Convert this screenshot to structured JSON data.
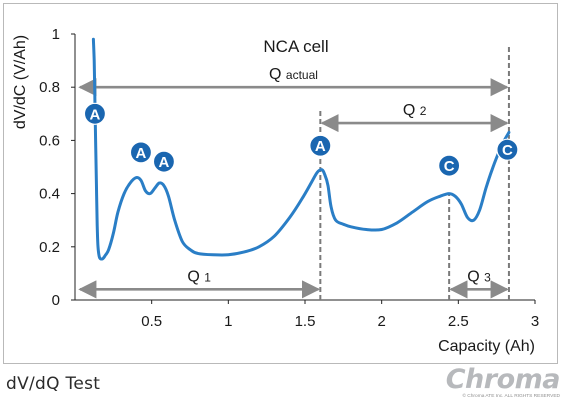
{
  "chart_data": {
    "type": "line",
    "title": "NCA cell",
    "xlabel": "Capacity (Ah)",
    "ylabel": "dV/dC (V/Ah)",
    "xlim": [
      0,
      3
    ],
    "ylim": [
      0,
      1
    ],
    "xticks": [
      0.5,
      1,
      1.5,
      2,
      2.5,
      3
    ],
    "xtick_labels": [
      "0.5",
      "1",
      "1.5",
      "2",
      "2.5",
      "3"
    ],
    "yticks": [
      0,
      0.2,
      0.4,
      0.6,
      0.8,
      1
    ],
    "ytick_labels": [
      "0",
      "0.2",
      "0.4",
      "0.6",
      "0.8",
      "1"
    ],
    "grid": false,
    "colors": {
      "curve": "#2a7ec6",
      "marker": "#1a66b0",
      "arrow": "#8a8a8a",
      "guide": "#7a7a7a"
    },
    "series": [
      {
        "x": [
          0.12,
          0.125,
          0.13,
          0.135,
          0.14,
          0.145,
          0.15,
          0.16,
          0.18,
          0.2,
          0.22,
          0.25,
          0.28,
          0.32,
          0.36,
          0.4,
          0.43,
          0.46,
          0.49,
          0.52,
          0.55,
          0.58,
          0.61,
          0.65,
          0.7,
          0.75,
          0.8,
          0.9,
          1.0,
          1.1,
          1.2,
          1.3,
          1.4,
          1.48,
          1.54,
          1.58,
          1.61,
          1.63,
          1.65,
          1.67,
          1.7,
          1.75,
          1.8,
          1.9,
          2.0,
          2.1,
          2.2,
          2.3,
          2.38,
          2.44,
          2.48,
          2.52,
          2.56,
          2.6,
          2.64,
          2.68,
          2.72,
          2.76,
          2.8,
          2.83
        ],
        "y": [
          0.98,
          0.9,
          0.75,
          0.58,
          0.42,
          0.28,
          0.2,
          0.16,
          0.155,
          0.17,
          0.19,
          0.25,
          0.33,
          0.4,
          0.44,
          0.46,
          0.45,
          0.41,
          0.4,
          0.42,
          0.44,
          0.43,
          0.39,
          0.3,
          0.22,
          0.19,
          0.175,
          0.17,
          0.17,
          0.18,
          0.2,
          0.24,
          0.31,
          0.38,
          0.44,
          0.48,
          0.49,
          0.47,
          0.43,
          0.35,
          0.3,
          0.285,
          0.275,
          0.265,
          0.265,
          0.29,
          0.33,
          0.37,
          0.39,
          0.4,
          0.39,
          0.36,
          0.31,
          0.3,
          0.34,
          0.42,
          0.49,
          0.55,
          0.6,
          0.63
        ]
      }
    ],
    "guides": [
      {
        "x": 1.6,
        "y_from": 0,
        "y_to": 0.72
      },
      {
        "x": 2.44,
        "y_from": 0,
        "y_to": 0.4
      },
      {
        "x": 2.83,
        "y_from": 0,
        "y_to": 0.96
      }
    ],
    "arrows": [
      {
        "label": "Q",
        "sub": "actual",
        "x1": 0.02,
        "x2": 2.83,
        "y": 0.8
      },
      {
        "label": "Q",
        "sub": "2",
        "x1": 1.6,
        "x2": 2.83,
        "y": 0.665
      },
      {
        "label": "Q",
        "sub": "1",
        "x1": 0.02,
        "x2": 1.6,
        "y": 0.04
      },
      {
        "label": "Q",
        "sub": "3",
        "x1": 2.44,
        "x2": 2.83,
        "y": 0.04
      }
    ],
    "markers": [
      {
        "text": "A",
        "x": 0.13,
        "y": 0.7
      },
      {
        "text": "A",
        "x": 0.43,
        "y": 0.555
      },
      {
        "text": "A",
        "x": 0.58,
        "y": 0.52
      },
      {
        "text": "A",
        "x": 1.6,
        "y": 0.58
      },
      {
        "text": "C",
        "x": 2.44,
        "y": 0.505
      },
      {
        "text": "C",
        "x": 2.82,
        "y": 0.565
      }
    ]
  },
  "footer": {
    "caption": "dV/dQ Test"
  },
  "logo": {
    "wordmark": "Chroma",
    "copyright": "© Chroma ATE Inc. ALL RIGHTS RESERVED"
  }
}
